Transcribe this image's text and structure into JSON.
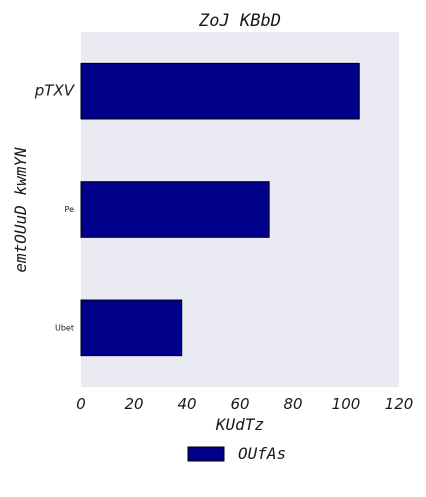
{
  "chart_data": {
    "type": "bar",
    "orientation": "horizontal",
    "title": "ZoJ KBbD",
    "xlabel": "KUdTz",
    "ylabel": "emtOUuD kwmYN",
    "categories": [
      "pTXV",
      "Pe",
      "Ubet"
    ],
    "series": [
      {
        "name": "OUfAs",
        "values": [
          105,
          71,
          38
        ],
        "color": "#00008b"
      }
    ],
    "xlim": [
      0,
      120
    ],
    "xticks": [
      0,
      20,
      40,
      60,
      80,
      100,
      120
    ],
    "grid": false,
    "legend_position": "bottom-center",
    "background_color": "#eaeaf2"
  }
}
